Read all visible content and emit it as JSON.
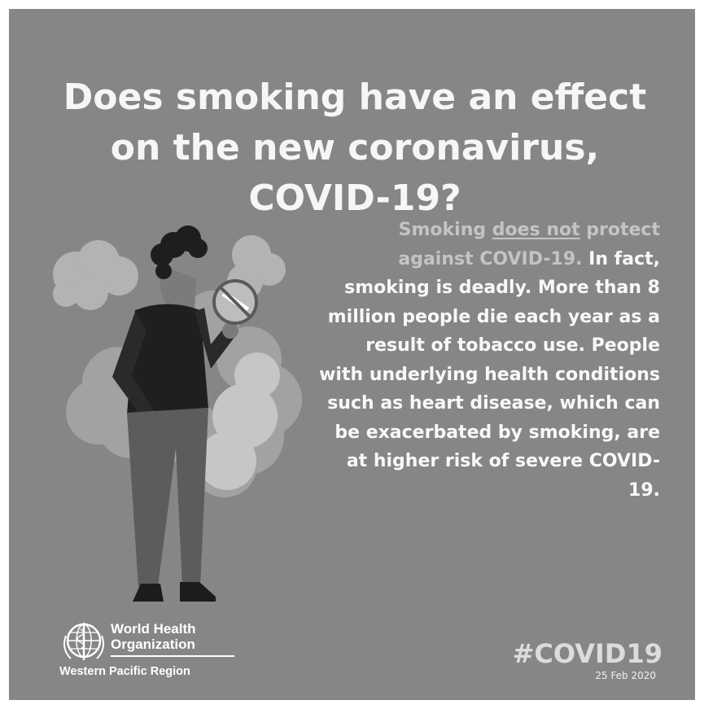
{
  "poster": {
    "title": "Does smoking have an effect on the new coronavirus, COVID-19?",
    "body": {
      "highlight_start": "Smoking ",
      "highlight_underlined": "does not",
      "highlight_end": " protect against COVID-19.",
      "main": " In fact, smoking is deadly. More than 8 million people die each year as a result of tobacco use. People with underlying health conditions such as heart disease, which can be exacerbated by smoking, are at higher risk of severe COVID-19."
    },
    "illustration": {
      "subject": "person holding a crossed-out cigarette sign",
      "icon": "no-smoking-icon"
    },
    "footer": {
      "org_name_line1": "World Health",
      "org_name_line2": "Organization",
      "region": "Western Pacific Region",
      "logo_icon": "who-emblem-icon",
      "hashtag": "#COVID19",
      "date": "25 Feb 2020"
    },
    "colors": {
      "background": "#868686",
      "text": "#f8f8f8",
      "muted_text": "#c4c4c4"
    }
  }
}
